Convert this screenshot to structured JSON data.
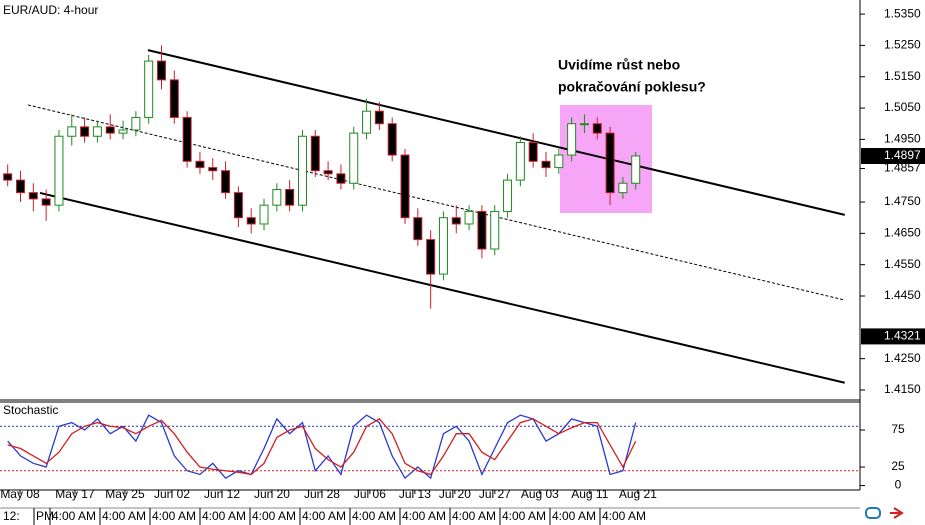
{
  "chart_data": {
    "type": "candlestick",
    "title": "EUR/AUD: 4-hour",
    "annotation": [
      "Uvidíme růst nebo",
      "pokračování poklesu?"
    ],
    "open": [
      1.484,
      1.482,
      1.478,
      1.476,
      1.474,
      1.496,
      1.499,
      1.496,
      1.499,
      1.497,
      1.498,
      1.502,
      1.52,
      1.514,
      1.502,
      1.488,
      1.486,
      1.485,
      1.478,
      1.47,
      1.468,
      1.474,
      1.479,
      1.474,
      1.496,
      1.485,
      1.484,
      1.481,
      1.497,
      1.504,
      1.5,
      1.49,
      1.47,
      1.463,
      1.452,
      1.47,
      1.468,
      1.472,
      1.46,
      1.472,
      1.482,
      1.494,
      1.488,
      1.486,
      1.49,
      1.5,
      1.5,
      1.497,
      1.478,
      1.481
    ],
    "high": [
      1.487,
      1.485,
      1.481,
      1.479,
      1.498,
      1.503,
      1.502,
      1.501,
      1.503,
      1.501,
      1.504,
      1.522,
      1.525,
      1.517,
      1.504,
      1.491,
      1.489,
      1.488,
      1.48,
      1.473,
      1.476,
      1.481,
      1.482,
      1.498,
      1.498,
      1.488,
      1.487,
      1.499,
      1.508,
      1.507,
      1.502,
      1.492,
      1.473,
      1.466,
      1.472,
      1.474,
      1.474,
      1.474,
      1.474,
      1.484,
      1.496,
      1.497,
      1.491,
      1.492,
      1.502,
      1.503,
      1.502,
      1.499,
      1.483,
      1.491
    ],
    "low": [
      1.48,
      1.475,
      1.472,
      1.469,
      1.472,
      1.493,
      1.494,
      1.494,
      1.495,
      1.495,
      1.496,
      1.5,
      1.511,
      1.5,
      1.486,
      1.484,
      1.482,
      1.476,
      1.467,
      1.465,
      1.466,
      1.472,
      1.472,
      1.472,
      1.483,
      1.482,
      1.479,
      1.479,
      1.495,
      1.498,
      1.488,
      1.468,
      1.461,
      1.441,
      1.45,
      1.465,
      1.466,
      1.457,
      1.458,
      1.47,
      1.48,
      1.486,
      1.483,
      1.484,
      1.488,
      1.497,
      1.495,
      1.474,
      1.476,
      1.479
    ],
    "close": [
      1.482,
      1.478,
      1.476,
      1.474,
      1.496,
      1.499,
      1.496,
      1.499,
      1.497,
      1.498,
      1.502,
      1.52,
      1.514,
      1.502,
      1.488,
      1.486,
      1.485,
      1.478,
      1.47,
      1.468,
      1.474,
      1.479,
      1.474,
      1.496,
      1.485,
      1.484,
      1.481,
      1.497,
      1.504,
      1.5,
      1.49,
      1.47,
      1.463,
      1.452,
      1.47,
      1.468,
      1.472,
      1.46,
      1.472,
      1.482,
      1.494,
      1.488,
      1.486,
      1.49,
      1.5,
      1.5,
      1.497,
      1.478,
      1.481,
      1.4897
    ],
    "up_color": "#1f8a1f",
    "down_color": "#c8202a",
    "xlim": [
      -0.6,
      66.5
    ],
    "xticks": [
      {
        "value": 0.96,
        "label": "May 08"
      },
      {
        "value": 5.25,
        "label": "May 17"
      },
      {
        "value": 9.15,
        "label": "May 25"
      },
      {
        "value": 12.82,
        "label": "Jun 02"
      },
      {
        "value": 16.72,
        "label": "Jun 12"
      },
      {
        "value": 20.62,
        "label": "Jun 20"
      },
      {
        "value": 24.52,
        "label": "Jun 28"
      },
      {
        "value": 28.26,
        "label": "Jul 06"
      },
      {
        "value": 31.77,
        "label": "Jul 13"
      },
      {
        "value": 34.89,
        "label": "Jul 20"
      },
      {
        "value": 38.01,
        "label": "Jul 27"
      },
      {
        "value": 41.52,
        "label": "Aug 03"
      },
      {
        "value": 45.42,
        "label": "Aug 11"
      },
      {
        "value": 49.17,
        "label": "Aug 21"
      }
    ],
    "ylim": [
      1.4118,
      1.5395
    ],
    "yticks": [
      {
        "value": 1.535,
        "label": "1.5350"
      },
      {
        "value": 1.525,
        "label": "1.5250"
      },
      {
        "value": 1.515,
        "label": "1.5150"
      },
      {
        "value": 1.505,
        "label": "1.5050"
      },
      {
        "value": 1.495,
        "label": "1.4950"
      },
      {
        "value": 1.475,
        "label": "1.4750"
      },
      {
        "value": 1.465,
        "label": "1.4650"
      },
      {
        "value": 1.455,
        "label": "1.4550"
      },
      {
        "value": 1.445,
        "label": "1.4450"
      },
      {
        "value": 1.425,
        "label": "1.4250"
      },
      {
        "value": 1.415,
        "label": "1.4150"
      }
    ],
    "price_labels": [
      {
        "value": 1.4857,
        "label": "1.4857",
        "boxed": false
      },
      {
        "value": 1.4897,
        "label": "1.4897",
        "boxed": true
      },
      {
        "value": 1.4321,
        "label": "1.4321",
        "boxed": true
      }
    ],
    "trend_lines": [
      {
        "x": [
          10.94,
          65.31
        ],
        "y": [
          1.5235,
          1.4709
        ],
        "dashed": false
      },
      {
        "x": [
          1.58,
          65.31
        ],
        "y": [
          1.506,
          1.4437
        ],
        "dashed": true
      },
      {
        "x": [
          2.52,
          65.31
        ],
        "y": [
          1.4779,
          1.4173
        ],
        "dashed": false
      }
    ],
    "stochastic": {
      "title": "Stochastic",
      "ylim": [
        -6,
        112.8
      ],
      "yticks": [
        75,
        25,
        0
      ],
      "levels": [
        {
          "value": 80,
          "color": "#2030c0"
        },
        {
          "value": 20,
          "color": "#d02020"
        }
      ],
      "series": [
        {
          "color": "#2a3ad0",
          "values": [
            60,
            40,
            30,
            25,
            80,
            85,
            75,
            90,
            70,
            80,
            60,
            95,
            85,
            40,
            20,
            15,
            30,
            10,
            20,
            15,
            50,
            90,
            70,
            85,
            20,
            40,
            15,
            80,
            95,
            85,
            40,
            10,
            25,
            10,
            70,
            80,
            60,
            15,
            50,
            85,
            95,
            90,
            60,
            70,
            90,
            85,
            80,
            15,
            20,
            85
          ]
        },
        {
          "color": "#d02020",
          "values": [
            55,
            50,
            40,
            30,
            45,
            70,
            80,
            85,
            80,
            78,
            70,
            80,
            88,
            70,
            45,
            25,
            22,
            20,
            18,
            15,
            30,
            65,
            75,
            80,
            50,
            35,
            25,
            45,
            80,
            90,
            70,
            30,
            20,
            15,
            40,
            70,
            70,
            45,
            35,
            60,
            85,
            90,
            80,
            70,
            78,
            85,
            85,
            55,
            25,
            60
          ]
        }
      ]
    },
    "time_labels": [
      "12:",
      "PM",
      "4:00 AM",
      "4:00 AM",
      "4:00 AM",
      "4:00 AM",
      "4:00 AM",
      "4:00 AM",
      "4:00 AM",
      "4:00 AM",
      "4:00 AM",
      "4:00 AM",
      "4:00 AM",
      "4:00 AM"
    ]
  }
}
